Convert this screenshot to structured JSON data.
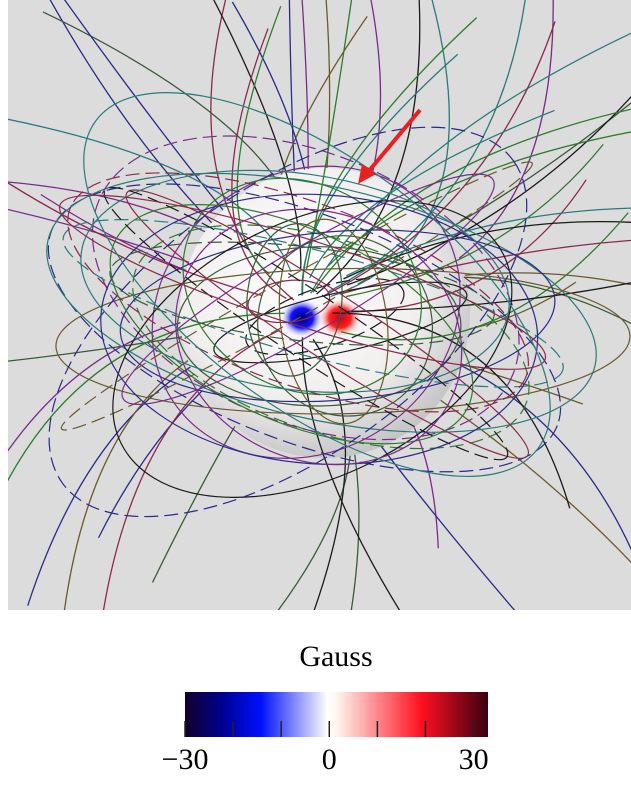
{
  "colorbar": {
    "label": "Gauss",
    "lim": [
      -30,
      33
    ],
    "ticks": [
      {
        "value": -30,
        "label": "−30"
      },
      0,
      30
    ],
    "minor_ticks": [
      -20,
      -10,
      10,
      20
    ]
  }
}
